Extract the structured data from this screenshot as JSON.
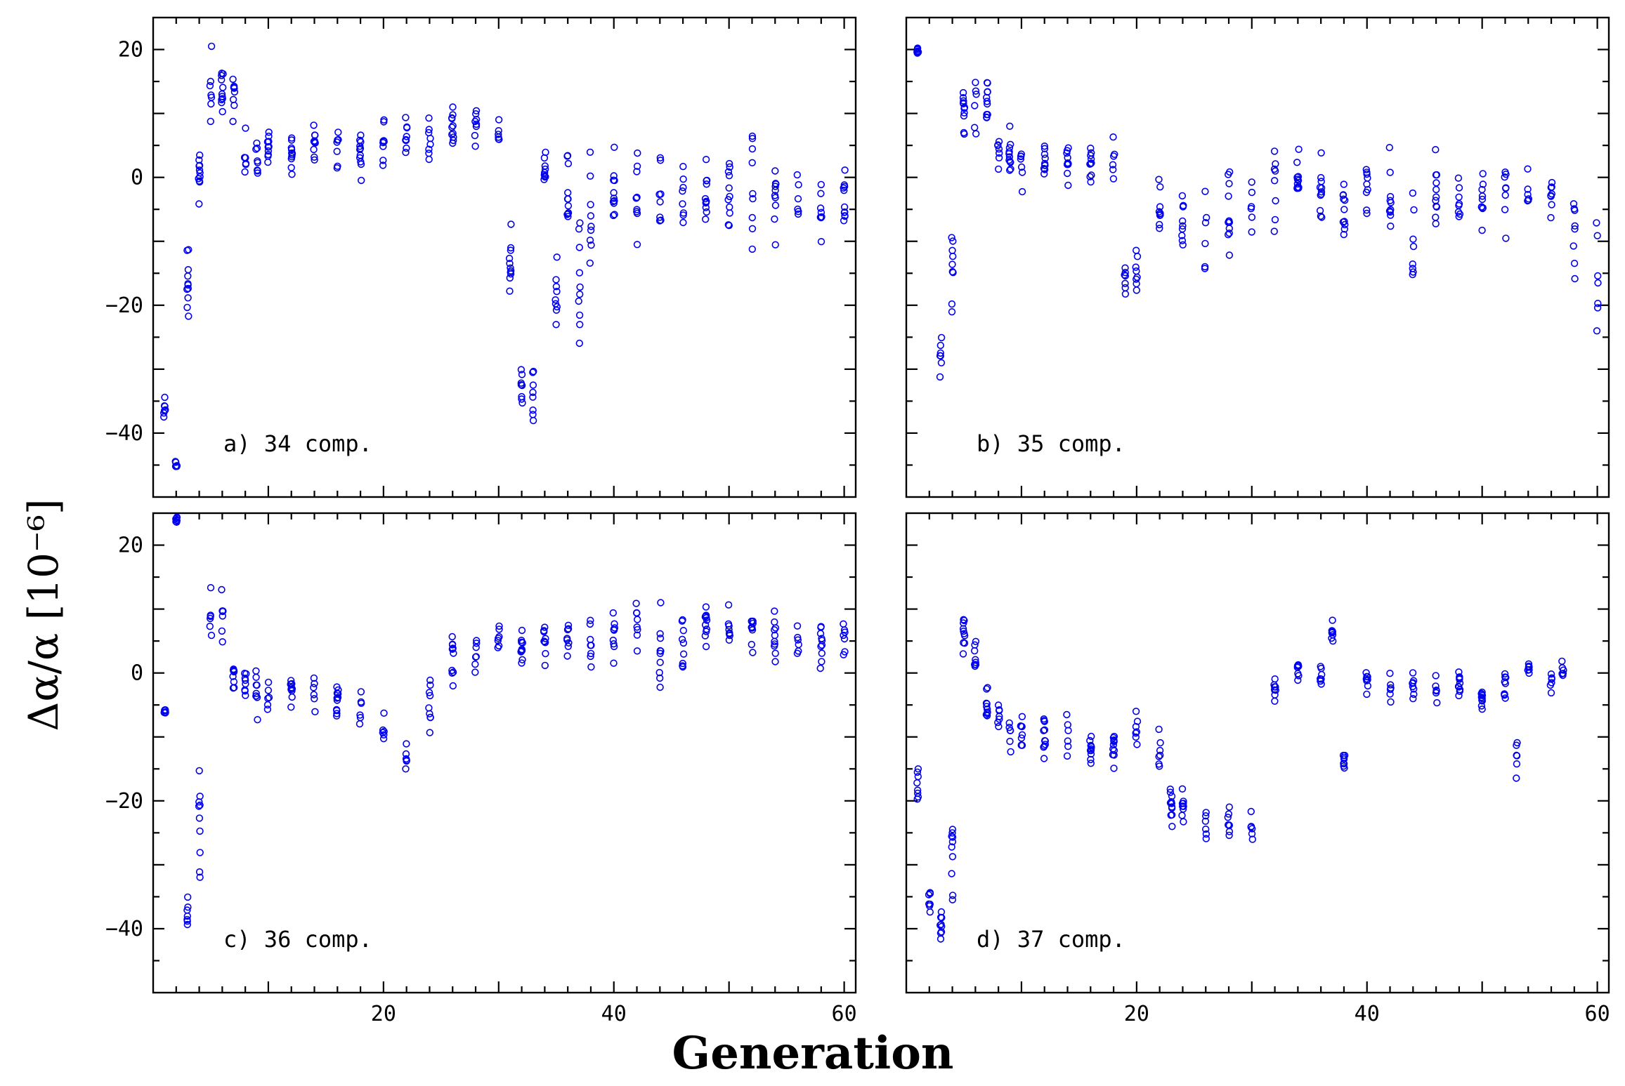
{
  "figure": {
    "xlabel": "Generation",
    "ylabel": "Δα/α  [10⁻⁶]"
  },
  "chart_data": [
    {
      "type": "scatter",
      "panel": "a",
      "label": "a) 34 comp.",
      "xlim": [
        0,
        61
      ],
      "ylim": [
        -50,
        25
      ],
      "xticks": [
        20,
        40,
        60
      ],
      "yticks": [
        -40,
        -20,
        0,
        20
      ],
      "show_x_tick_labels": false,
      "show_y_tick_labels": true,
      "series": [
        {
          "name": "34 comp.",
          "color": "#0000ee",
          "anchors": [
            [
              1,
              -35,
              3
            ],
            [
              2,
              -45,
              1
            ],
            [
              3,
              -15,
              8
            ],
            [
              4,
              0,
              6
            ],
            [
              5,
              14,
              8
            ],
            [
              6,
              12,
              8
            ],
            [
              7,
              12,
              6
            ],
            [
              8,
              3,
              5
            ],
            [
              9,
              3,
              6
            ],
            [
              10,
              4,
              5
            ],
            [
              12,
              4,
              5
            ],
            [
              14,
              5,
              6
            ],
            [
              16,
              5,
              6
            ],
            [
              18,
              4,
              6
            ],
            [
              20,
              5,
              7
            ],
            [
              22,
              6,
              6
            ],
            [
              24,
              6,
              6
            ],
            [
              26,
              8,
              6
            ],
            [
              28,
              9,
              6
            ],
            [
              30,
              7,
              4
            ],
            [
              31,
              -15,
              10
            ],
            [
              32,
              -33,
              5
            ],
            [
              33,
              -33,
              7
            ],
            [
              34,
              1,
              4
            ],
            [
              35,
              -20,
              10
            ],
            [
              36,
              -3,
              12
            ],
            [
              37,
              -15,
              14
            ],
            [
              38,
              -5,
              12
            ],
            [
              40,
              -2,
              10
            ],
            [
              42,
              -3,
              12
            ],
            [
              44,
              -2,
              12
            ],
            [
              46,
              -3,
              12
            ],
            [
              48,
              -2,
              10
            ],
            [
              50,
              -3,
              12
            ],
            [
              52,
              -3,
              12
            ],
            [
              54,
              -3,
              12
            ],
            [
              56,
              -4,
              12
            ],
            [
              58,
              -5,
              12
            ],
            [
              60,
              -3,
              10
            ]
          ]
        }
      ]
    },
    {
      "type": "scatter",
      "panel": "b",
      "label": "b) 35 comp.",
      "xlim": [
        0,
        61
      ],
      "ylim": [
        -50,
        25
      ],
      "xticks": [
        20,
        40,
        60
      ],
      "yticks": [
        -40,
        -20,
        0,
        20
      ],
      "show_x_tick_labels": false,
      "show_y_tick_labels": false,
      "series": [
        {
          "name": "35 comp.",
          "color": "#0000ee",
          "anchors": [
            [
              1,
              20,
              2
            ],
            [
              3,
              -28,
              6
            ],
            [
              4,
              -15,
              12
            ],
            [
              5,
              10,
              8
            ],
            [
              6,
              13,
              8
            ],
            [
              7,
              12,
              6
            ],
            [
              8,
              5,
              6
            ],
            [
              9,
              3,
              6
            ],
            [
              10,
              2,
              5
            ],
            [
              12,
              3,
              5
            ],
            [
              14,
              3,
              5
            ],
            [
              16,
              2,
              5
            ],
            [
              18,
              3,
              6
            ],
            [
              19,
              -16,
              5
            ],
            [
              20,
              -12,
              8
            ],
            [
              22,
              -5,
              10
            ],
            [
              24,
              -8,
              10
            ],
            [
              26,
              -10,
              10
            ],
            [
              28,
              -5,
              10
            ],
            [
              30,
              -5,
              9
            ],
            [
              32,
              -3,
              8
            ],
            [
              34,
              -2,
              8
            ],
            [
              36,
              -2,
              8
            ],
            [
              38,
              -3,
              8
            ],
            [
              40,
              -2,
              8
            ],
            [
              42,
              -3,
              10
            ],
            [
              44,
              -10,
              14
            ],
            [
              46,
              -3,
              10
            ],
            [
              48,
              -2,
              8
            ],
            [
              50,
              -3,
              8
            ],
            [
              52,
              -3,
              8
            ],
            [
              54,
              -3,
              8
            ],
            [
              56,
              -2,
              10
            ],
            [
              58,
              -10,
              14
            ],
            [
              60,
              -15,
              14
            ]
          ]
        }
      ]
    },
    {
      "type": "scatter",
      "panel": "c",
      "label": "c) 36 comp.",
      "xlim": [
        0,
        61
      ],
      "ylim": [
        -50,
        25
      ],
      "xticks": [
        20,
        40,
        60
      ],
      "yticks": [
        -40,
        -20,
        0,
        20
      ],
      "show_x_tick_labels": true,
      "show_y_tick_labels": true,
      "series": [
        {
          "name": "36 comp.",
          "color": "#0000ee",
          "anchors": [
            [
              1,
              -6,
              1
            ],
            [
              2,
              24,
              1
            ],
            [
              3,
              -38,
              4
            ],
            [
              4,
              -25,
              16
            ],
            [
              5,
              8,
              10
            ],
            [
              6,
              8,
              8
            ],
            [
              7,
              -1,
              5
            ],
            [
              8,
              -2,
              5
            ],
            [
              9,
              -3,
              5
            ],
            [
              10,
              -3,
              5
            ],
            [
              12,
              -3,
              4
            ],
            [
              14,
              -3,
              5
            ],
            [
              16,
              -4,
              5
            ],
            [
              18,
              -6,
              6
            ],
            [
              20,
              -9,
              6
            ],
            [
              22,
              -12,
              8
            ],
            [
              24,
              -5,
              8
            ],
            [
              26,
              2,
              6
            ],
            [
              28,
              3,
              6
            ],
            [
              30,
              5,
              5
            ],
            [
              32,
              5,
              5
            ],
            [
              34,
              5,
              6
            ],
            [
              36,
              5,
              6
            ],
            [
              38,
              4,
              6
            ],
            [
              40,
              5,
              6
            ],
            [
              42,
              7,
              8
            ],
            [
              44,
              4,
              10
            ],
            [
              46,
              5,
              7
            ],
            [
              48,
              7,
              6
            ],
            [
              50,
              7,
              6
            ],
            [
              52,
              7,
              6
            ],
            [
              54,
              6,
              6
            ],
            [
              56,
              5,
              6
            ],
            [
              58,
              5,
              6
            ],
            [
              60,
              5,
              6
            ]
          ]
        }
      ]
    },
    {
      "type": "scatter",
      "panel": "d",
      "label": "d) 37 comp.",
      "xlim": [
        0,
        61
      ],
      "ylim": [
        -50,
        25
      ],
      "xticks": [
        20,
        40,
        60
      ],
      "yticks": [
        -40,
        -20,
        0,
        20
      ],
      "show_x_tick_labels": true,
      "show_y_tick_labels": false,
      "series": [
        {
          "name": "37 comp.",
          "color": "#0000ee",
          "anchors": [
            [
              1,
              -18,
              4
            ],
            [
              2,
              -36,
              3
            ],
            [
              3,
              -40,
              4
            ],
            [
              4,
              -30,
              14
            ],
            [
              5,
              5,
              8
            ],
            [
              6,
              2,
              5
            ],
            [
              7,
              -5,
              4
            ],
            [
              8,
              -6,
              4
            ],
            [
              9,
              -9,
              5
            ],
            [
              10,
              -10,
              5
            ],
            [
              12,
              -10,
              5
            ],
            [
              14,
              -11,
              5
            ],
            [
              16,
              -12,
              5
            ],
            [
              18,
              -12,
              5
            ],
            [
              20,
              -8,
              6
            ],
            [
              22,
              -13,
              5
            ],
            [
              23,
              -20,
              6
            ],
            [
              24,
              -21,
              5
            ],
            [
              26,
              -24,
              4
            ],
            [
              28,
              -24,
              4
            ],
            [
              30,
              -24,
              4
            ],
            [
              32,
              -3,
              4
            ],
            [
              34,
              0,
              4
            ],
            [
              36,
              0,
              3
            ],
            [
              37,
              7,
              3
            ],
            [
              38,
              -14,
              3
            ],
            [
              40,
              -1,
              3
            ],
            [
              42,
              -2,
              4
            ],
            [
              44,
              -2,
              4
            ],
            [
              46,
              -2,
              3
            ],
            [
              48,
              -2,
              3
            ],
            [
              50,
              -4,
              3
            ],
            [
              52,
              -2,
              3
            ],
            [
              53,
              -14,
              6
            ],
            [
              54,
              1,
              3
            ],
            [
              56,
              -1,
              3
            ],
            [
              57,
              1,
              3
            ]
          ]
        }
      ]
    }
  ]
}
